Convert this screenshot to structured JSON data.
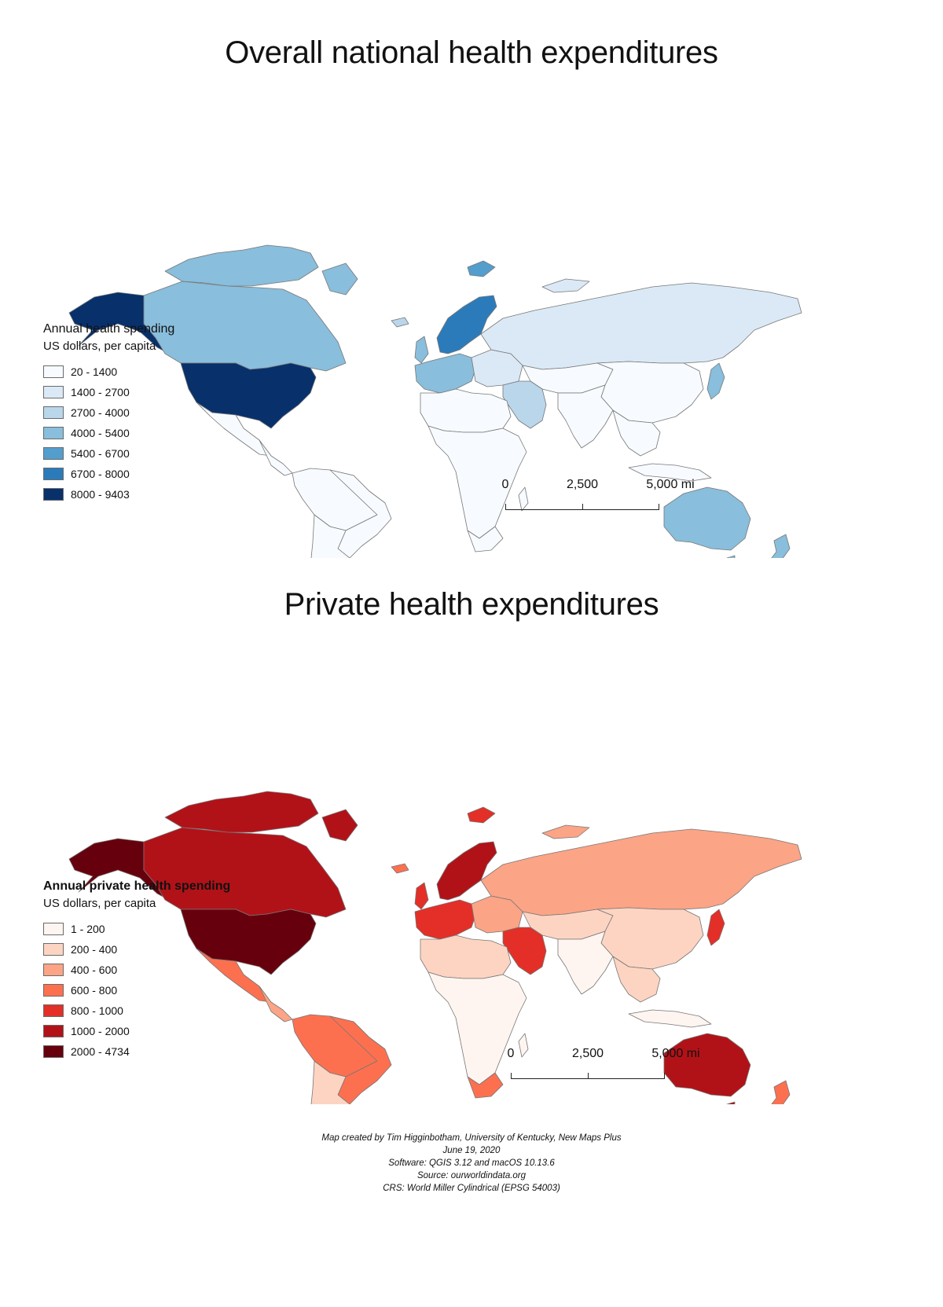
{
  "maps": [
    {
      "title": "Overall national health expenditures",
      "legend_title": "Annual health spending",
      "legend_subtitle": "US dollars, per capita",
      "classes": [
        {
          "label": "20 - 1400",
          "color": "#f7fbff"
        },
        {
          "label": "1400 - 2700",
          "color": "#dbe9f6"
        },
        {
          "label": "2700 - 4000",
          "color": "#bad6eb"
        },
        {
          "label": "4000 - 5400",
          "color": "#89bedc"
        },
        {
          "label": "5400 - 6700",
          "color": "#539ecd"
        },
        {
          "label": "6700 - 8000",
          "color": "#2b7bba"
        },
        {
          "label": "8000 - 9403",
          "color": "#08306b"
        }
      ],
      "scalebar": [
        "0",
        "2,500",
        "5,000 mi"
      ]
    },
    {
      "title": "Private health expenditures",
      "legend_title": "Annual private health spending",
      "legend_subtitle": "US dollars, per capita",
      "classes": [
        {
          "label": "1 - 200",
          "color": "#fff5f0"
        },
        {
          "label": "200 - 400",
          "color": "#fdd4c2"
        },
        {
          "label": "400 - 600",
          "color": "#fca486"
        },
        {
          "label": "600 - 800",
          "color": "#fc7050"
        },
        {
          "label": "800 - 1000",
          "color": "#e32f27"
        },
        {
          "label": "1000 - 2000",
          "color": "#b11218"
        },
        {
          "label": "2000 - 4734",
          "color": "#67000d"
        }
      ],
      "scalebar": [
        "0",
        "2,500",
        "5,000 mi"
      ]
    }
  ],
  "credits": [
    "Map created by Tim Higginbotham, University of Kentucky, New Maps Plus",
    "June 19, 2020",
    "Software: QGIS 3.12 and macOS 10.13.6",
    "Source: ourworldindata.org",
    "CRS: World Miller Cylindrical (EPSG 54003)"
  ]
}
